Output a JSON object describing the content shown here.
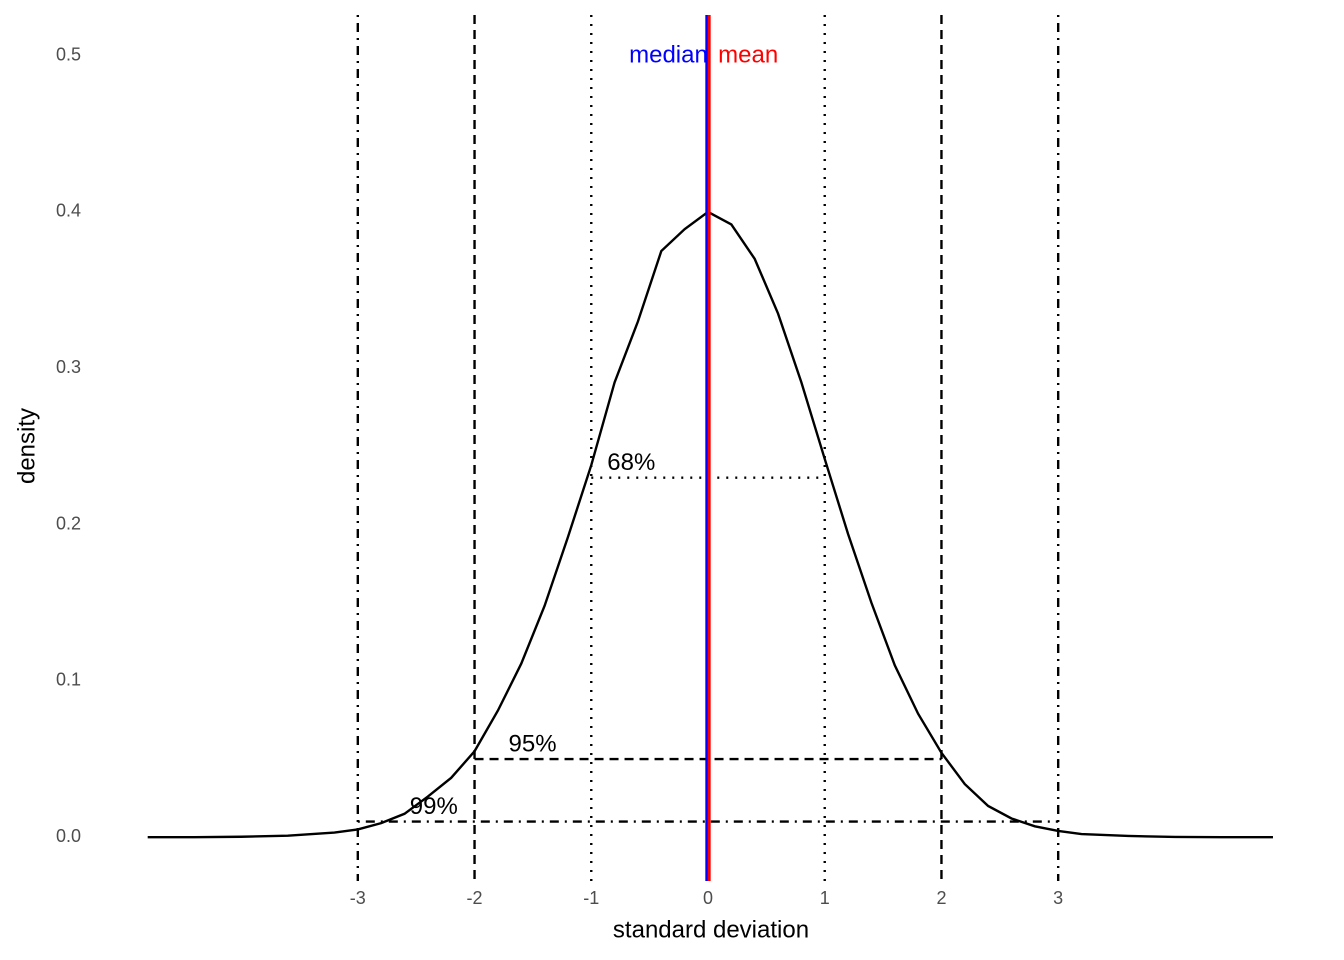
{
  "chart_data": {
    "type": "line",
    "x_label": "standard deviation",
    "y_label": "density",
    "x": [
      -4.8,
      -4.4,
      -4.0,
      -3.6,
      -3.2,
      -3.0,
      -2.8,
      -2.6,
      -2.4,
      -2.2,
      -2.0,
      -1.8,
      -1.6,
      -1.4,
      -1.2,
      -1.0,
      -0.8,
      -0.6,
      -0.4,
      -0.2,
      0.0,
      0.2,
      0.4,
      0.6,
      0.8,
      1.0,
      1.2,
      1.4,
      1.6,
      1.8,
      2.0,
      2.2,
      2.4,
      2.6,
      2.8,
      3.0,
      3.2,
      3.6,
      4.0,
      4.4,
      4.84
    ],
    "values": [
      0.0,
      0.0,
      0.0003,
      0.001,
      0.003,
      0.005,
      0.009,
      0.015,
      0.026,
      0.038,
      0.055,
      0.081,
      0.111,
      0.148,
      0.192,
      0.238,
      0.291,
      0.33,
      0.375,
      0.389,
      0.4,
      0.392,
      0.37,
      0.335,
      0.291,
      0.242,
      0.194,
      0.15,
      0.11,
      0.079,
      0.054,
      0.034,
      0.02,
      0.012,
      0.007,
      0.004,
      0.002,
      0.0008,
      0.0002,
      0.0,
      0.0
    ],
    "color": "#000000",
    "xlim": [
      -5.26,
      5.32
    ],
    "ylim": [
      -0.028,
      0.526
    ],
    "xticks": [
      -3,
      -2,
      -1,
      0,
      1,
      2,
      3
    ],
    "yticks": [
      {
        "value": 0,
        "label": "0.0"
      },
      0.1,
      0.2,
      0.3,
      0.4,
      0.5
    ],
    "vlines": [
      {
        "value": -3,
        "style": "dotdash"
      },
      {
        "value": -2,
        "style": "dashed"
      },
      {
        "value": -1,
        "style": "dotted"
      },
      {
        "value": 1,
        "style": "dotted"
      },
      {
        "value": 2,
        "style": "dashed"
      },
      {
        "value": 3,
        "style": "dotdash"
      }
    ],
    "ranges": [
      {
        "label": "68%",
        "y": 0.23,
        "from": -1,
        "to": 1,
        "style": "dotted"
      },
      {
        "label": "95%",
        "y": 0.05,
        "from": -2,
        "to": 2,
        "style": "dashed"
      },
      {
        "label": "99%",
        "y": 0.01,
        "from": -3,
        "to": 3,
        "style": "dotdash"
      }
    ],
    "center_lines": [
      {
        "name": "median",
        "value": -0.01,
        "color": "#0000ff"
      },
      {
        "name": "mean",
        "value": 0.01,
        "color": "#ff0000"
      }
    ]
  }
}
